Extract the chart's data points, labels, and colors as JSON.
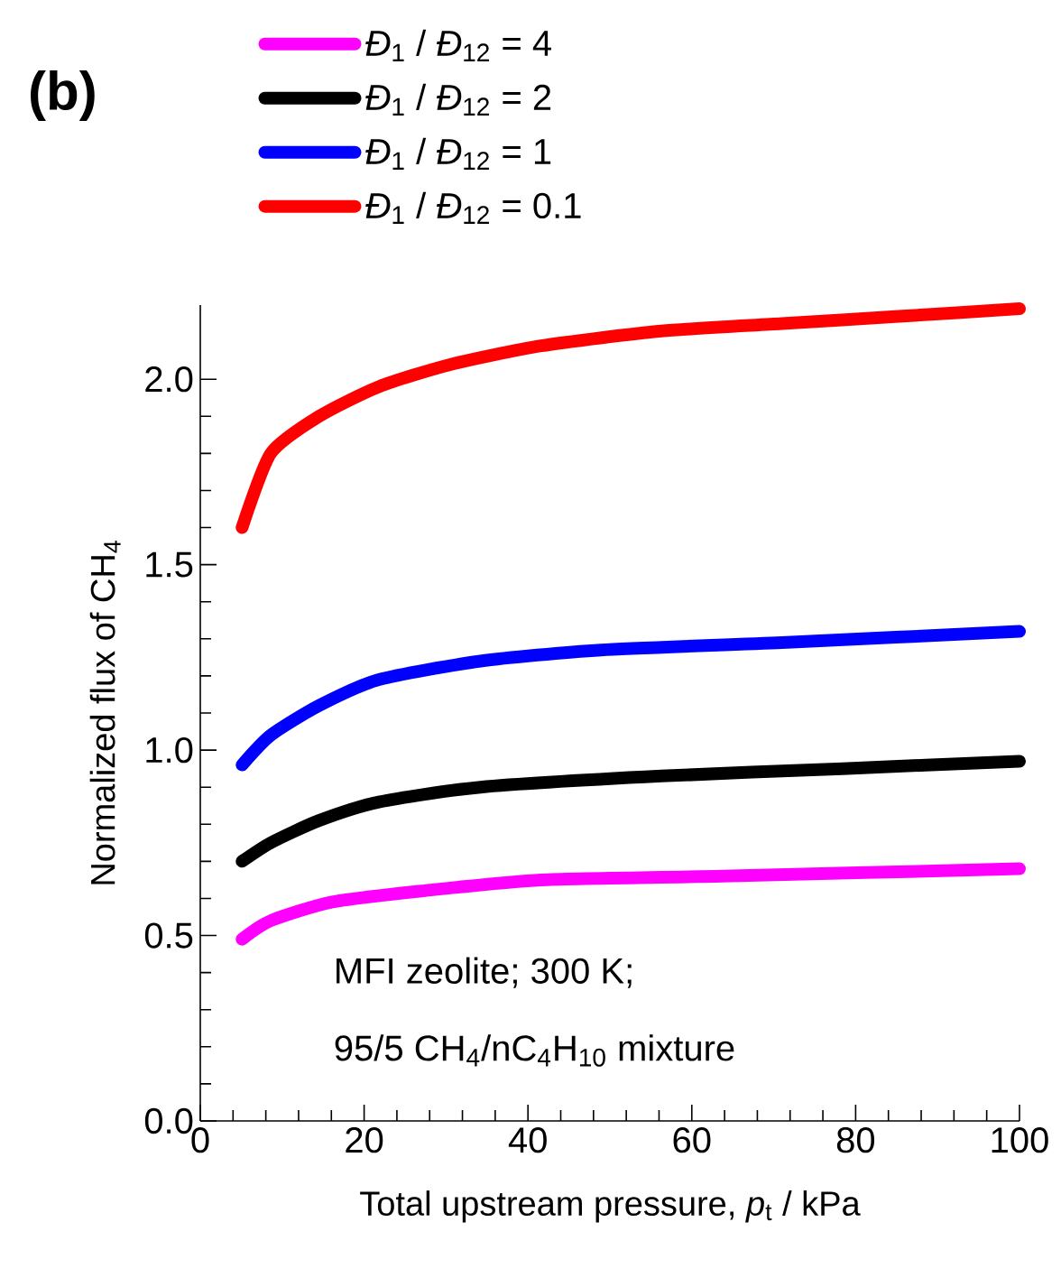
{
  "chart_data": {
    "type": "line",
    "xlabel": "Total upstream pressure,  *p*$_{t}$ / kPa",
    "ylabel": "Normalized flux of CH$_{4}$",
    "annotations": [
      "(b)",
      "MFI zeolite; 300 K;",
      "95/5 CH$_{4}$/nC$_{4}$H$_{10}$ mixture"
    ],
    "xlim": [
      0,
      100
    ],
    "ylim": [
      0,
      2.2
    ],
    "xticks": [
      0,
      20,
      40,
      60,
      80,
      100
    ],
    "yticks": [
      {
        "value": 0,
        "label": "0.0"
      },
      0.5,
      {
        "value": 1,
        "label": "1.0"
      },
      1.5,
      {
        "value": 2,
        "label": "2.0"
      }
    ],
    "legend": "top",
    "marker": "none",
    "line_style": "solid",
    "series": [
      {
        "name": "*Đ*$_{1}$ / *Đ*$_{12}$ = 4",
        "color": "#ff00ff",
        "x": [
          5.1,
          8.6,
          16,
          27,
          41.6,
          63.7,
          100
        ],
        "values": [
          0.49,
          0.54,
          0.59,
          0.62,
          0.65,
          0.66,
          0.68
        ]
      },
      {
        "name": "*Đ*$_{1}$ / *Đ*$_{12}$ = 2",
        "color": "#000000",
        "x": [
          5.1,
          8.6,
          14.5,
          21.8,
          34.2,
          56.3,
          78.4,
          100
        ],
        "values": [
          0.7,
          0.75,
          0.81,
          0.86,
          0.9,
          0.93,
          0.95,
          0.97
        ]
      },
      {
        "name": "*Đ*$_{1}$ / *Đ*$_{12}$ = 1",
        "color": "#0000ff",
        "x": [
          5.1,
          8.6,
          14.5,
          21.8,
          34.2,
          48.9,
          71,
          100
        ],
        "values": [
          0.96,
          1.04,
          1.12,
          1.19,
          1.24,
          1.27,
          1.29,
          1.32
        ]
      },
      {
        "name": "*Đ*$_{1}$ / *Đ*$_{12}$ = 0.1",
        "color": "#ff0000",
        "x": [
          5.1,
          8.6,
          14.5,
          21.8,
          30.6,
          41.6,
          56.3,
          71,
          85.7,
          100
        ],
        "values": [
          1.6,
          1.8,
          1.9,
          1.98,
          2.04,
          2.09,
          2.13,
          2.15,
          2.17,
          2.19
        ]
      }
    ]
  }
}
